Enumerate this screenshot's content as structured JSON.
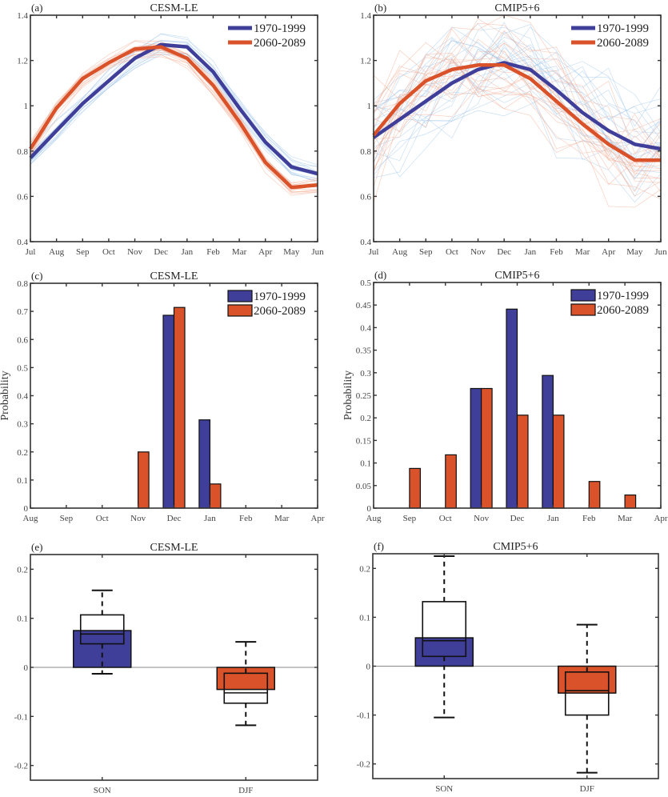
{
  "colors": {
    "period1": "#3f3f9a",
    "period2": "#d9522a",
    "period1_light": "#9fc4ea",
    "period2_light": "#f2a98f",
    "axis": "#333333"
  },
  "chart_data": [
    {
      "id": "a",
      "panel_label": "(a)",
      "type": "line",
      "title": "CESM-LE",
      "xlabel": "",
      "ylabel": "",
      "x": [
        "Jul",
        "Aug",
        "Sep",
        "Oct",
        "Nov",
        "Dec",
        "Jan",
        "Feb",
        "Mar",
        "Apr",
        "May",
        "Jun"
      ],
      "ylim": [
        0.4,
        1.4
      ],
      "yticks": [
        0.4,
        0.6,
        0.8,
        1,
        1.2,
        1.4
      ],
      "ytick_labels": [
        "0.4",
        "0.6",
        "0.8",
        "1",
        "1.2",
        "1.4"
      ],
      "legend": {
        "placement": "top-right",
        "entries": [
          "1970-1999",
          "2060-2089"
        ]
      },
      "series": [
        {
          "name": "1970-1999",
          "values": [
            0.77,
            0.89,
            1.01,
            1.11,
            1.21,
            1.27,
            1.26,
            1.15,
            0.99,
            0.84,
            0.73,
            0.7
          ]
        },
        {
          "name": "2060-2089",
          "values": [
            0.81,
            0.99,
            1.12,
            1.19,
            1.25,
            1.26,
            1.21,
            1.09,
            0.93,
            0.75,
            0.64,
            0.65
          ]
        }
      ],
      "ensemble_members_note": "thin light lines show individual members",
      "ensemble_spread": 0.04
    },
    {
      "id": "b",
      "panel_label": "(b)",
      "type": "line",
      "title": "CMIP5+6",
      "xlabel": "",
      "ylabel": "",
      "x": [
        "Jul",
        "Aug",
        "Sep",
        "Oct",
        "Nov",
        "Dec",
        "Jan",
        "Feb",
        "Mar",
        "Apr",
        "May",
        "Jun"
      ],
      "ylim": [
        0.4,
        1.4
      ],
      "yticks": [
        0.4,
        0.6,
        0.8,
        1,
        1.2,
        1.4
      ],
      "ytick_labels": [
        "0.4",
        "0.6",
        "0.8",
        "1",
        "1.2",
        "1.4"
      ],
      "legend": {
        "placement": "top-right",
        "entries": [
          "1970-1999",
          "2060-2089"
        ]
      },
      "series": [
        {
          "name": "1970-1999",
          "values": [
            0.86,
            0.94,
            1.02,
            1.1,
            1.16,
            1.19,
            1.16,
            1.07,
            0.97,
            0.89,
            0.83,
            0.81
          ]
        },
        {
          "name": "2060-2089",
          "values": [
            0.87,
            1.01,
            1.11,
            1.16,
            1.18,
            1.18,
            1.12,
            1.02,
            0.92,
            0.83,
            0.76,
            0.76
          ]
        }
      ],
      "ensemble_members_note": "thin light lines show individual models",
      "ensemble_spread": 0.15
    },
    {
      "id": "c",
      "panel_label": "(c)",
      "type": "bar",
      "title": "CESM-LE",
      "xlabel": "",
      "ylabel": "Probability",
      "categories": [
        "Aug",
        "Sep",
        "Oct",
        "Nov",
        "Dec",
        "Jan",
        "Feb",
        "Mar",
        "Apr"
      ],
      "ylim": [
        0,
        0.8
      ],
      "yticks": [
        0,
        0.1,
        0.2,
        0.3,
        0.4,
        0.5,
        0.6,
        0.7,
        0.8
      ],
      "ytick_labels": [
        "0",
        "0.1",
        "0.2",
        "0.3",
        "0.4",
        "0.5",
        "0.6",
        "0.7",
        "0.8"
      ],
      "legend": {
        "placement": "top-right",
        "entries": [
          "1970-1999",
          "2060-2089"
        ]
      },
      "series": [
        {
          "name": "1970-1999",
          "values": [
            0,
            0,
            0,
            0,
            0.686,
            0.314,
            0,
            0,
            0
          ]
        },
        {
          "name": "2060-2089",
          "values": [
            0,
            0,
            0,
            0.2,
            0.714,
            0.086,
            0,
            0,
            0
          ]
        }
      ]
    },
    {
      "id": "d",
      "panel_label": "(d)",
      "type": "bar",
      "title": "CMIP5+6",
      "xlabel": "",
      "ylabel": "Probability",
      "categories": [
        "Aug",
        "Sep",
        "Oct",
        "Nov",
        "Dec",
        "Jan",
        "Feb",
        "Mar",
        "Apr"
      ],
      "ylim": [
        0,
        0.5
      ],
      "yticks": [
        0,
        0.05,
        0.1,
        0.15,
        0.2,
        0.25,
        0.3,
        0.35,
        0.4,
        0.45,
        0.5
      ],
      "ytick_labels": [
        "0",
        "0.05",
        "0.1",
        "0.15",
        "0.2",
        "0.25",
        "0.3",
        "0.35",
        "0.4",
        "0.45",
        "0.5"
      ],
      "legend": {
        "placement": "top-right",
        "entries": [
          "1970-1999",
          "2060-2089"
        ]
      },
      "series": [
        {
          "name": "1970-1999",
          "values": [
            0,
            0,
            0,
            0.265,
            0.441,
            0.294,
            0,
            0,
            0
          ]
        },
        {
          "name": "2060-2089",
          "values": [
            0,
            0.088,
            0.118,
            0.265,
            0.206,
            0.206,
            0.059,
            0.029,
            0
          ]
        }
      ]
    },
    {
      "id": "e",
      "panel_label": "(e)",
      "type": "bar",
      "subtype": "bar-with-boxplot",
      "title": "CESM-LE",
      "xlabel": "",
      "ylabel": "",
      "categories": [
        "SON",
        "DJF"
      ],
      "ylim": [
        -0.23,
        0.23
      ],
      "yticks": [
        -0.2,
        -0.1,
        0,
        0.1,
        0.2
      ],
      "ytick_labels": [
        "-0.2",
        "-0.1",
        "0",
        "0.1",
        "0.2"
      ],
      "bars": [
        {
          "category": "SON",
          "value": 0.075,
          "color_key": "period1"
        },
        {
          "category": "DJF",
          "value": -0.045,
          "color_key": "period2"
        }
      ],
      "boxes": [
        {
          "category": "SON",
          "whisker_low": -0.013,
          "q1": 0.048,
          "median": 0.068,
          "q3": 0.107,
          "whisker_high": 0.157
        },
        {
          "category": "DJF",
          "whisker_low": -0.118,
          "q1": -0.073,
          "median": -0.052,
          "q3": -0.012,
          "whisker_high": 0.052
        }
      ]
    },
    {
      "id": "f",
      "panel_label": "(f)",
      "type": "bar",
      "subtype": "bar-with-boxplot",
      "title": "CMIP5+6",
      "xlabel": "",
      "ylabel": "",
      "categories": [
        "SON",
        "DJF"
      ],
      "ylim": [
        -0.23,
        0.23
      ],
      "yticks": [
        -0.2,
        -0.1,
        0,
        0.1,
        0.2
      ],
      "ytick_labels": [
        "-0.2",
        "-0.1",
        "0",
        "0.1",
        "0.2"
      ],
      "bars": [
        {
          "category": "SON",
          "value": 0.058,
          "color_key": "period1"
        },
        {
          "category": "DJF",
          "value": -0.055,
          "color_key": "period2"
        }
      ],
      "boxes": [
        {
          "category": "SON",
          "whisker_low": -0.105,
          "q1": 0.02,
          "median": 0.052,
          "q3": 0.132,
          "whisker_high": 0.225
        },
        {
          "category": "DJF",
          "whisker_low": -0.218,
          "q1": -0.1,
          "median": -0.05,
          "q3": -0.012,
          "whisker_high": 0.085
        }
      ]
    }
  ]
}
